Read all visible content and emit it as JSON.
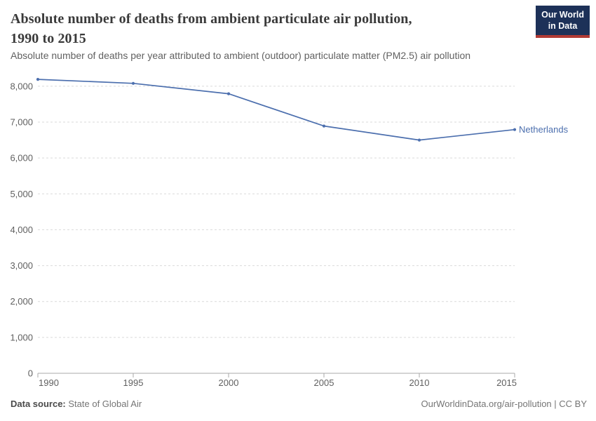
{
  "header": {
    "title_line1": "Absolute number of deaths from ambient particulate air pollution,",
    "title_line2": "1990 to 2015",
    "subtitle": "Absolute number of deaths per year attributed to ambient (outdoor) particulate matter (PM2.5) air pollution"
  },
  "logo": {
    "line1": "Our World",
    "line2": "in Data"
  },
  "chart_data": {
    "type": "line",
    "title": "Absolute number of deaths from ambient particulate air pollution, 1990 to 2015",
    "subtitle": "Absolute number of deaths per year attributed to ambient (outdoor) particulate matter (PM2.5) air pollution",
    "x": [
      1990,
      1995,
      2000,
      2005,
      2010,
      2015
    ],
    "series": [
      {
        "name": "Netherlands",
        "color": "#4c6fae",
        "values": [
          8190,
          8080,
          7790,
          6890,
          6500,
          6790
        ]
      }
    ],
    "xlabel": "",
    "ylabel": "",
    "ylim": [
      0,
      8000
    ],
    "y_tick_step": 1000,
    "y_tick_labels": [
      "0",
      "1,000",
      "2,000",
      "3,000",
      "4,000",
      "5,000",
      "6,000",
      "7,000",
      "8,000"
    ],
    "grid": "horizontal-dashed",
    "legend": "end-of-line-label",
    "marker": "dot"
  },
  "colors": {
    "line": "#4c6fae",
    "grid": "#dadada",
    "axis": "#a8a8a8",
    "tick_text": "#606060",
    "logo_bg": "#1d3158",
    "logo_bar": "#b13a34"
  },
  "footer": {
    "source_label": "Data source:",
    "source_value": "State of Global Air",
    "right_text": "OurWorldinData.org/air-pollution | CC BY"
  }
}
